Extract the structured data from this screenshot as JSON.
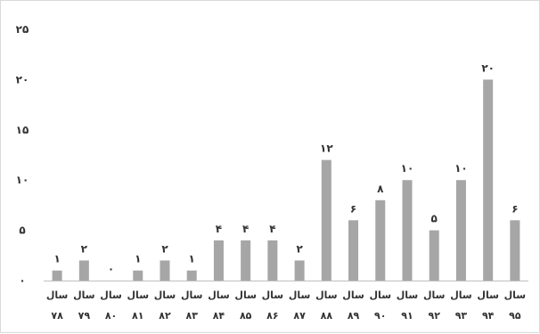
{
  "chart_data": {
    "type": "bar",
    "title": "",
    "xlabel": "",
    "ylabel": "",
    "ylim": [
      0,
      25
    ],
    "yticks": [
      0,
      5,
      10,
      15,
      20,
      25
    ],
    "ytick_labels": [
      "۰",
      "۵",
      "۱۰",
      "۱۵",
      "۲۰",
      "۲۵"
    ],
    "grid": false,
    "legend": "none",
    "bar_color": "#a6a6a6",
    "categories": [
      {
        "word": "سال",
        "year": "۷۸"
      },
      {
        "word": "سال",
        "year": "۷۹"
      },
      {
        "word": "سال",
        "year": "۸۰"
      },
      {
        "word": "سال",
        "year": "۸۱"
      },
      {
        "word": "سال",
        "year": "۸۲"
      },
      {
        "word": "سال",
        "year": "۸۳"
      },
      {
        "word": "سال",
        "year": "۸۴"
      },
      {
        "word": "سال",
        "year": "۸۵"
      },
      {
        "word": "سال",
        "year": "۸۶"
      },
      {
        "word": "سال",
        "year": "۸۷"
      },
      {
        "word": "سال",
        "year": "۸۸"
      },
      {
        "word": "سال",
        "year": "۸۹"
      },
      {
        "word": "سال",
        "year": "۹۰"
      },
      {
        "word": "سال",
        "year": "۹۱"
      },
      {
        "word": "سال",
        "year": "۹۲"
      },
      {
        "word": "سال",
        "year": "۹۳"
      },
      {
        "word": "سال",
        "year": "۹۴"
      },
      {
        "word": "سال",
        "year": "۹۵"
      }
    ],
    "values": [
      1,
      2,
      0,
      1,
      2,
      1,
      4,
      4,
      4,
      2,
      12,
      6,
      8,
      10,
      5,
      10,
      20,
      6
    ],
    "value_labels": [
      "۱",
      "۲",
      "۰",
      "۱",
      "۲",
      "۱",
      "۴",
      "۴",
      "۴",
      "۲",
      "۱۲",
      "۶",
      "۸",
      "۱۰",
      "۵",
      "۱۰",
      "۲۰",
      "۶"
    ]
  }
}
